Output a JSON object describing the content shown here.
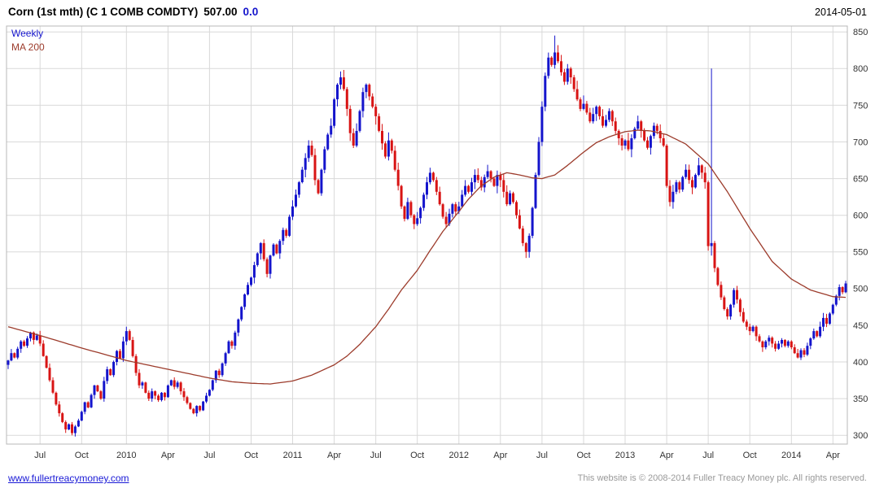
{
  "header": {
    "title": "Corn (1st mth) (C 1 COMB COMDTY)",
    "last": "507.00",
    "change": "0.0",
    "date": "2014-05-01"
  },
  "legend": {
    "weekly": "Weekly",
    "ma": "MA 200"
  },
  "footer": {
    "site_link": "www.fullertreacymoney.com",
    "copyright": "This website is © 2008-2014 Fuller Treacy Money plc. All rights reserved."
  },
  "colors": {
    "up": "#1414cc",
    "down": "#d81414",
    "ma": "#9c3b2b",
    "grid": "#d9d9d9",
    "frame": "#b8b8b8",
    "axis_text": "#333333",
    "change": "#1414cc",
    "link": "#1a1ad6"
  },
  "chart_data": {
    "type": "candlestick",
    "title": "Corn (1st mth) (C 1 COMB COMDTY)",
    "interval": "Weekly",
    "overlay": "MA 200",
    "last": 507.0,
    "y_axis": {
      "min": 300,
      "max": 850,
      "step": 50,
      "side": "right"
    },
    "x_labels": [
      {
        "label": "Jul",
        "i": 10
      },
      {
        "label": "Oct",
        "i": 23
      },
      {
        "label": "2010",
        "i": 37
      },
      {
        "label": "Apr",
        "i": 50
      },
      {
        "label": "Jul",
        "i": 63
      },
      {
        "label": "Oct",
        "i": 76
      },
      {
        "label": "2011",
        "i": 89
      },
      {
        "label": "Apr",
        "i": 102
      },
      {
        "label": "Jul",
        "i": 115
      },
      {
        "label": "Oct",
        "i": 128
      },
      {
        "label": "2012",
        "i": 141
      },
      {
        "label": "Apr",
        "i": 154
      },
      {
        "label": "Jul",
        "i": 167
      },
      {
        "label": "Oct",
        "i": 180
      },
      {
        "label": "2013",
        "i": 193
      },
      {
        "label": "Apr",
        "i": 206
      },
      {
        "label": "Jul",
        "i": 219
      },
      {
        "label": "Oct",
        "i": 232
      },
      {
        "label": "2014",
        "i": 245
      },
      {
        "label": "Apr",
        "i": 258
      }
    ],
    "weekly_closes": [
      402,
      412,
      406,
      418,
      428,
      422,
      432,
      440,
      430,
      436,
      425,
      408,
      392,
      375,
      358,
      342,
      330,
      318,
      308,
      315,
      303,
      312,
      320,
      332,
      345,
      338,
      355,
      368,
      360,
      350,
      374,
      390,
      382,
      400,
      415,
      405,
      428,
      442,
      430,
      408,
      385,
      368,
      372,
      358,
      350,
      360,
      354,
      348,
      358,
      352,
      368,
      375,
      366,
      372,
      360,
      352,
      344,
      336,
      330,
      340,
      334,
      346,
      354,
      362,
      375,
      388,
      382,
      398,
      412,
      428,
      422,
      440,
      458,
      475,
      492,
      505,
      515,
      532,
      548,
      562,
      540,
      520,
      545,
      560,
      548,
      565,
      580,
      572,
      598,
      612,
      628,
      645,
      662,
      678,
      695,
      682,
      648,
      630,
      662,
      690,
      710,
      722,
      758,
      778,
      788,
      772,
      745,
      712,
      695,
      715,
      742,
      768,
      778,
      762,
      748,
      735,
      715,
      698,
      680,
      702,
      688,
      662,
      640,
      612,
      595,
      618,
      600,
      588,
      596,
      610,
      628,
      645,
      658,
      648,
      632,
      615,
      598,
      588,
      602,
      615,
      605,
      612,
      628,
      640,
      632,
      645,
      655,
      648,
      638,
      652,
      660,
      650,
      640,
      655,
      648,
      632,
      615,
      630,
      618,
      600,
      582,
      562,
      550,
      572,
      610,
      655,
      700,
      748,
      790,
      815,
      805,
      822,
      810,
      795,
      782,
      800,
      788,
      772,
      758,
      745,
      752,
      740,
      728,
      738,
      748,
      735,
      722,
      730,
      742,
      728,
      715,
      705,
      695,
      702,
      690,
      705,
      718,
      728,
      715,
      702,
      692,
      708,
      722,
      715,
      705,
      695,
      640,
      618,
      632,
      645,
      635,
      652,
      662,
      648,
      638,
      655,
      668,
      658,
      645,
      558,
      562,
      528,
      505,
      488,
      472,
      462,
      478,
      498,
      485,
      468,
      455,
      448,
      442,
      448,
      435,
      428,
      420,
      428,
      433,
      425,
      418,
      425,
      430,
      422,
      428,
      420,
      412,
      406,
      416,
      410,
      422,
      432,
      442,
      435,
      448,
      460,
      452,
      466,
      478,
      490,
      502,
      495,
      507
    ],
    "spikes": [
      {
        "i": 104,
        "high": 796
      },
      {
        "i": 171,
        "high": 845
      },
      {
        "i": 220,
        "high": 800,
        "low": 545
      }
    ],
    "ma200": {
      "label": "MA 200",
      "anchors": [
        [
          0,
          448
        ],
        [
          10,
          436
        ],
        [
          23,
          419
        ],
        [
          37,
          402
        ],
        [
          50,
          390
        ],
        [
          63,
          378
        ],
        [
          70,
          373
        ],
        [
          76,
          371
        ],
        [
          82,
          370
        ],
        [
          89,
          374
        ],
        [
          95,
          382
        ],
        [
          102,
          396
        ],
        [
          106,
          408
        ],
        [
          110,
          424
        ],
        [
          115,
          448
        ],
        [
          119,
          472
        ],
        [
          123,
          498
        ],
        [
          128,
          525
        ],
        [
          132,
          552
        ],
        [
          136,
          578
        ],
        [
          141,
          605
        ],
        [
          144,
          622
        ],
        [
          148,
          640
        ],
        [
          152,
          652
        ],
        [
          156,
          658
        ],
        [
          160,
          655
        ],
        [
          164,
          651
        ],
        [
          167,
          650
        ],
        [
          171,
          655
        ],
        [
          175,
          668
        ],
        [
          180,
          686
        ],
        [
          184,
          699
        ],
        [
          188,
          707
        ],
        [
          193,
          714
        ],
        [
          197,
          716
        ],
        [
          201,
          715
        ],
        [
          206,
          710
        ],
        [
          212,
          697
        ],
        [
          219,
          670
        ],
        [
          225,
          632
        ],
        [
          232,
          582
        ],
        [
          239,
          537
        ],
        [
          245,
          513
        ],
        [
          251,
          498
        ],
        [
          258,
          489
        ],
        [
          262,
          488
        ]
      ]
    }
  }
}
